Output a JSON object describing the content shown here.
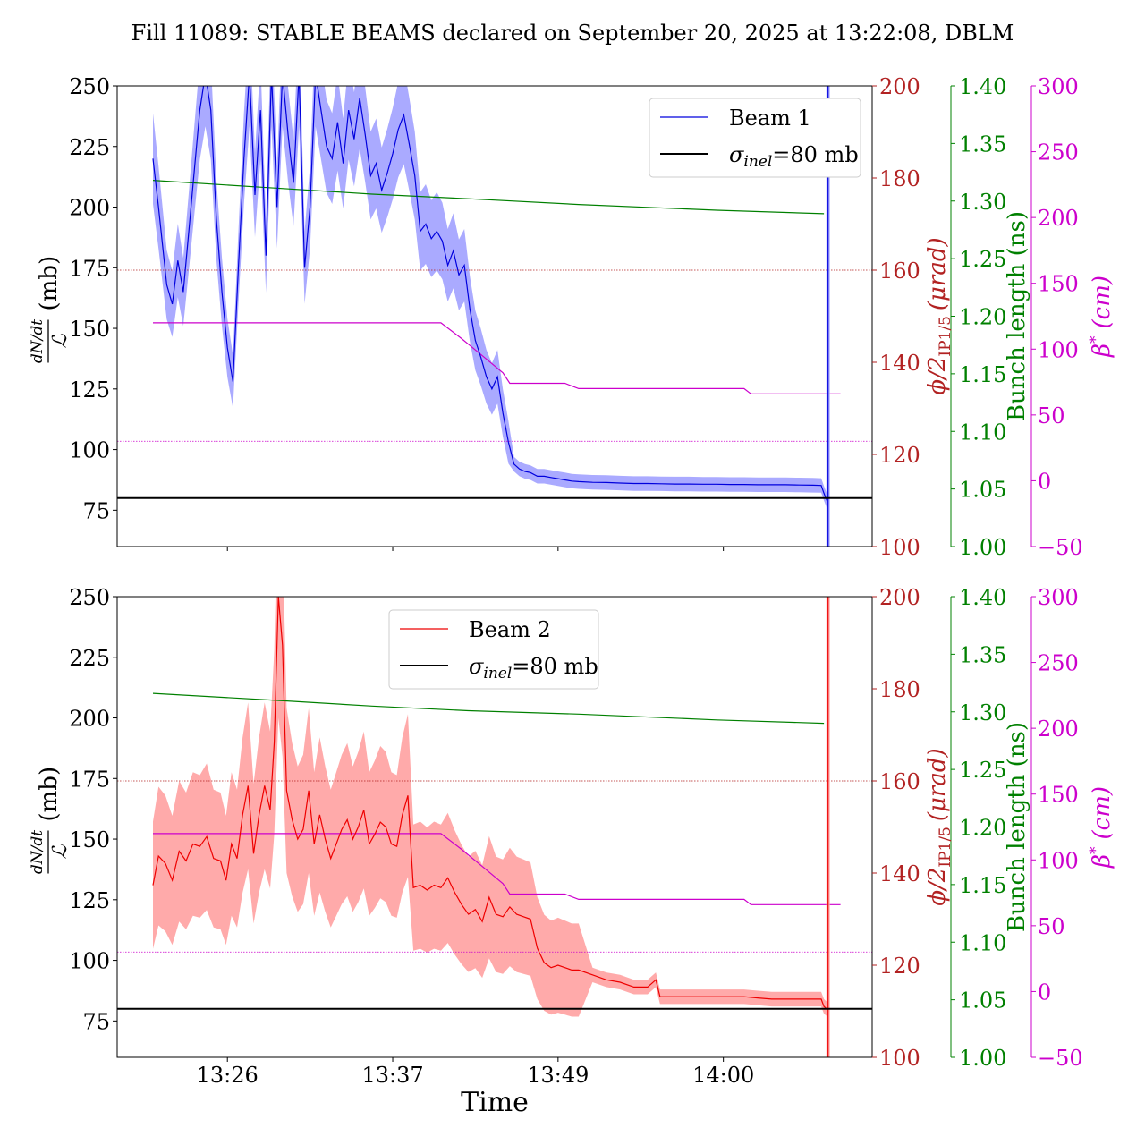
{
  "title": "Fill 11089: STABLE BEAMS declared on September 20, 2025 at 13:22:08, DBLM",
  "x_axis": {
    "label": "Time",
    "range_minutes": [
      -3.5,
      51.3
    ],
    "ticks": [
      {
        "t": 4.5,
        "label": "13:26"
      },
      {
        "t": 16.5,
        "label": "13:37"
      },
      {
        "t": 28.5,
        "label": "13:49"
      },
      {
        "t": 40.5,
        "label": "14:00"
      }
    ]
  },
  "axes_labels": {
    "left_num": "dN/dt",
    "left_den": "ℒ",
    "left_unit": "(mb)",
    "right1_main": "ϕ/2",
    "right1_sub": "IP1/5",
    "right1_unit": "(μrad)",
    "right2": "Bunch length (ns)",
    "right3_main": "β",
    "right3_sup": "*",
    "right3_unit": "(cm)"
  },
  "colors": {
    "beam1": "#0000dd",
    "beam1_band": "#aaaaff",
    "beam2": "#ee0000",
    "beam2_band": "#ffaaaa",
    "sigma": "#000000",
    "crossing": "#b22222",
    "bunch": "#008000",
    "beta": "#cc00cc"
  },
  "chart_data": [
    {
      "type": "line",
      "panel": "top",
      "series_name": "Beam 1",
      "legend": [
        "Beam 1",
        "σinel=80 mb"
      ],
      "legend_placement": "top-right",
      "left_axis": {
        "ylim": [
          60,
          250
        ],
        "ticks": [
          75,
          100,
          125,
          150,
          175,
          200,
          225,
          250
        ]
      },
      "right1_axis": {
        "ylim": [
          100,
          200
        ],
        "ticks": [
          100,
          120,
          140,
          160,
          180,
          200
        ]
      },
      "right2_axis": {
        "ylim": [
          1.0,
          1.4
        ],
        "ticks": [
          "1.00",
          "1.05",
          "1.10",
          "1.15",
          "1.20",
          "1.25",
          "1.30",
          "1.35",
          "1.40"
        ]
      },
      "right3_axis": {
        "ylim": [
          -50,
          300
        ],
        "ticks": [
          "−50",
          "0",
          "50",
          "100",
          "150",
          "200",
          "250",
          "300"
        ]
      },
      "sigma_inel": 80,
      "cross_section": [
        [
          -0.9,
          220
        ],
        [
          -0.5,
          200
        ],
        [
          0.1,
          168
        ],
        [
          0.5,
          160
        ],
        [
          0.9,
          178
        ],
        [
          1.3,
          165
        ],
        [
          1.7,
          190
        ],
        [
          2.1,
          215
        ],
        [
          2.5,
          240
        ],
        [
          2.9,
          255
        ],
        [
          3.3,
          240
        ],
        [
          3.7,
          195
        ],
        [
          4.1,
          165
        ],
        [
          4.5,
          142
        ],
        [
          4.9,
          128
        ],
        [
          5.3,
          175
        ],
        [
          5.7,
          220
        ],
        [
          6.1,
          255
        ],
        [
          6.5,
          205
        ],
        [
          6.9,
          240
        ],
        [
          7.3,
          180
        ],
        [
          7.7,
          255
        ],
        [
          8.1,
          200
        ],
        [
          8.5,
          255
        ],
        [
          8.9,
          230
        ],
        [
          9.3,
          210
        ],
        [
          9.7,
          255
        ],
        [
          10.1,
          175
        ],
        [
          10.5,
          200
        ],
        [
          10.9,
          255
        ],
        [
          11.3,
          240
        ],
        [
          11.7,
          225
        ],
        [
          12.1,
          220
        ],
        [
          12.5,
          235
        ],
        [
          12.9,
          218
        ],
        [
          13.3,
          240
        ],
        [
          13.7,
          228
        ],
        [
          14.1,
          245
        ],
        [
          14.5,
          230
        ],
        [
          14.9,
          213
        ],
        [
          15.3,
          218
        ],
        [
          15.7,
          207
        ],
        [
          16.1,
          214
        ],
        [
          16.5,
          222
        ],
        [
          16.9,
          232
        ],
        [
          17.3,
          238
        ],
        [
          17.7,
          226
        ],
        [
          18.1,
          213
        ],
        [
          18.5,
          190
        ],
        [
          18.9,
          193
        ],
        [
          19.3,
          187
        ],
        [
          19.7,
          190
        ],
        [
          20.1,
          186
        ],
        [
          20.5,
          176
        ],
        [
          20.9,
          182
        ],
        [
          21.3,
          172
        ],
        [
          21.7,
          176
        ],
        [
          22.1,
          158
        ],
        [
          22.5,
          145
        ],
        [
          22.9,
          138
        ],
        [
          23.3,
          130
        ],
        [
          23.7,
          125
        ],
        [
          24.1,
          130
        ],
        [
          24.5,
          115
        ],
        [
          24.9,
          103
        ],
        [
          25.3,
          94
        ],
        [
          25.7,
          92
        ],
        [
          26.1,
          91
        ],
        [
          26.5,
          90.5
        ],
        [
          27,
          89
        ],
        [
          27.5,
          89
        ],
        [
          28,
          88.5
        ],
        [
          28.5,
          88
        ],
        [
          29,
          87.5
        ],
        [
          29.5,
          87
        ],
        [
          30,
          86.8
        ],
        [
          31,
          86.5
        ],
        [
          32,
          86.4
        ],
        [
          33,
          86.2
        ],
        [
          34,
          86
        ],
        [
          35,
          86
        ],
        [
          36,
          85.9
        ],
        [
          37,
          85.8
        ],
        [
          38,
          85.8
        ],
        [
          39,
          85.7
        ],
        [
          40,
          85.7
        ],
        [
          41,
          85.6
        ],
        [
          42,
          85.6
        ],
        [
          43,
          85.5
        ],
        [
          44,
          85.5
        ],
        [
          45,
          85.5
        ],
        [
          46,
          85.4
        ],
        [
          47,
          85.3
        ],
        [
          47.6,
          85.2
        ],
        [
          47.8,
          82
        ],
        [
          48,
          79
        ]
      ],
      "band_halfwidth_fraction": 0.085,
      "spike_t": 48.1,
      "bunch_length": [
        [
          -0.9,
          1.318
        ],
        [
          7,
          1.312
        ],
        [
          15,
          1.306
        ],
        [
          22,
          1.302
        ],
        [
          30,
          1.297
        ],
        [
          40,
          1.292
        ],
        [
          47.8,
          1.289
        ]
      ],
      "crossing_half_angle": 160,
      "beta_star": [
        [
          -0.9,
          120
        ],
        [
          20,
          120
        ],
        [
          21.5,
          108
        ],
        [
          23,
          95
        ],
        [
          24.5,
          82
        ],
        [
          25,
          74
        ],
        [
          29,
          74
        ],
        [
          30,
          70
        ],
        [
          42,
          70
        ],
        [
          42.5,
          66
        ],
        [
          49,
          66
        ]
      ],
      "dotted_ref_beta": 30
    },
    {
      "type": "line",
      "panel": "bottom",
      "series_name": "Beam 2",
      "legend": [
        "Beam 2",
        "σinel=80 mb"
      ],
      "legend_placement": "top-center",
      "left_axis": {
        "ylim": [
          60,
          250
        ],
        "ticks": [
          75,
          100,
          125,
          150,
          175,
          200,
          225,
          250
        ]
      },
      "right1_axis": {
        "ylim": [
          100,
          200
        ],
        "ticks": [
          100,
          120,
          140,
          160,
          180,
          200
        ]
      },
      "right2_axis": {
        "ylim": [
          1.0,
          1.4
        ],
        "ticks": [
          "1.00",
          "1.05",
          "1.10",
          "1.15",
          "1.20",
          "1.25",
          "1.30",
          "1.35",
          "1.40"
        ]
      },
      "right3_axis": {
        "ylim": [
          -50,
          300
        ],
        "ticks": [
          "−50",
          "0",
          "50",
          "100",
          "150",
          "200",
          "250",
          "300"
        ]
      },
      "sigma_inel": 80,
      "cross_section": [
        [
          -0.9,
          131
        ],
        [
          -0.5,
          143
        ],
        [
          0,
          140
        ],
        [
          0.5,
          133
        ],
        [
          1,
          145
        ],
        [
          1.5,
          141
        ],
        [
          2,
          148
        ],
        [
          2.5,
          147
        ],
        [
          3,
          151
        ],
        [
          3.5,
          142
        ],
        [
          4,
          141
        ],
        [
          4.4,
          133
        ],
        [
          4.8,
          148
        ],
        [
          5.2,
          142
        ],
        [
          5.6,
          160
        ],
        [
          6,
          172
        ],
        [
          6.4,
          144
        ],
        [
          6.8,
          160
        ],
        [
          7.2,
          172
        ],
        [
          7.6,
          162
        ],
        [
          7.9,
          190
        ],
        [
          8.2,
          250
        ],
        [
          8.5,
          230
        ],
        [
          8.8,
          170
        ],
        [
          9.2,
          158
        ],
        [
          9.6,
          150
        ],
        [
          10,
          154
        ],
        [
          10.4,
          170
        ],
        [
          10.8,
          148
        ],
        [
          11.2,
          160
        ],
        [
          11.6,
          150
        ],
        [
          12,
          142
        ],
        [
          12.4,
          148
        ],
        [
          12.8,
          154
        ],
        [
          13.2,
          158
        ],
        [
          13.6,
          150
        ],
        [
          14,
          155
        ],
        [
          14.4,
          162
        ],
        [
          14.8,
          148
        ],
        [
          15.2,
          152
        ],
        [
          15.6,
          157
        ],
        [
          16,
          155
        ],
        [
          16.4,
          148
        ],
        [
          16.8,
          147
        ],
        [
          17.2,
          160
        ],
        [
          17.6,
          168
        ],
        [
          18,
          130
        ],
        [
          18.5,
          131
        ],
        [
          19,
          129
        ],
        [
          19.5,
          131
        ],
        [
          20,
          130
        ],
        [
          20.5,
          134
        ],
        [
          21,
          128
        ],
        [
          21.5,
          123
        ],
        [
          22,
          119
        ],
        [
          22.5,
          121
        ],
        [
          23,
          116
        ],
        [
          23.5,
          126
        ],
        [
          24,
          119
        ],
        [
          24.5,
          118
        ],
        [
          25,
          122
        ],
        [
          25.5,
          119
        ],
        [
          26,
          118
        ],
        [
          26.5,
          117
        ],
        [
          27,
          105
        ],
        [
          27.5,
          99
        ],
        [
          28,
          97
        ],
        [
          28.5,
          98
        ],
        [
          29,
          97
        ],
        [
          29.5,
          96
        ],
        [
          30,
          96
        ],
        [
          31,
          94
        ],
        [
          32,
          92
        ],
        [
          33,
          91
        ],
        [
          34,
          89
        ],
        [
          35,
          89
        ],
        [
          35.6,
          92
        ],
        [
          35.9,
          85
        ],
        [
          36.5,
          85
        ],
        [
          37,
          85
        ],
        [
          38,
          85
        ],
        [
          39,
          85
        ],
        [
          40,
          85
        ],
        [
          41,
          85
        ],
        [
          42,
          85
        ],
        [
          43,
          84.5
        ],
        [
          44,
          84
        ],
        [
          45,
          84
        ],
        [
          46,
          84
        ],
        [
          47,
          84
        ],
        [
          47.6,
          84
        ],
        [
          47.8,
          81
        ],
        [
          48,
          80
        ]
      ],
      "band_halfwidth_fraction": 0.2,
      "spike_t": 48.1,
      "bunch_length": [
        [
          -0.9,
          1.316
        ],
        [
          8,
          1.31
        ],
        [
          15,
          1.305
        ],
        [
          22,
          1.301
        ],
        [
          30,
          1.298
        ],
        [
          40,
          1.293
        ],
        [
          47.8,
          1.29
        ]
      ],
      "crossing_half_angle": 160,
      "beta_star": [
        [
          -0.9,
          120
        ],
        [
          20,
          120
        ],
        [
          21.5,
          108
        ],
        [
          23,
          95
        ],
        [
          24.5,
          82
        ],
        [
          25,
          74
        ],
        [
          29,
          74
        ],
        [
          30,
          70
        ],
        [
          42,
          70
        ],
        [
          42.5,
          66
        ],
        [
          49,
          66
        ]
      ],
      "dotted_ref_beta": 30
    }
  ]
}
